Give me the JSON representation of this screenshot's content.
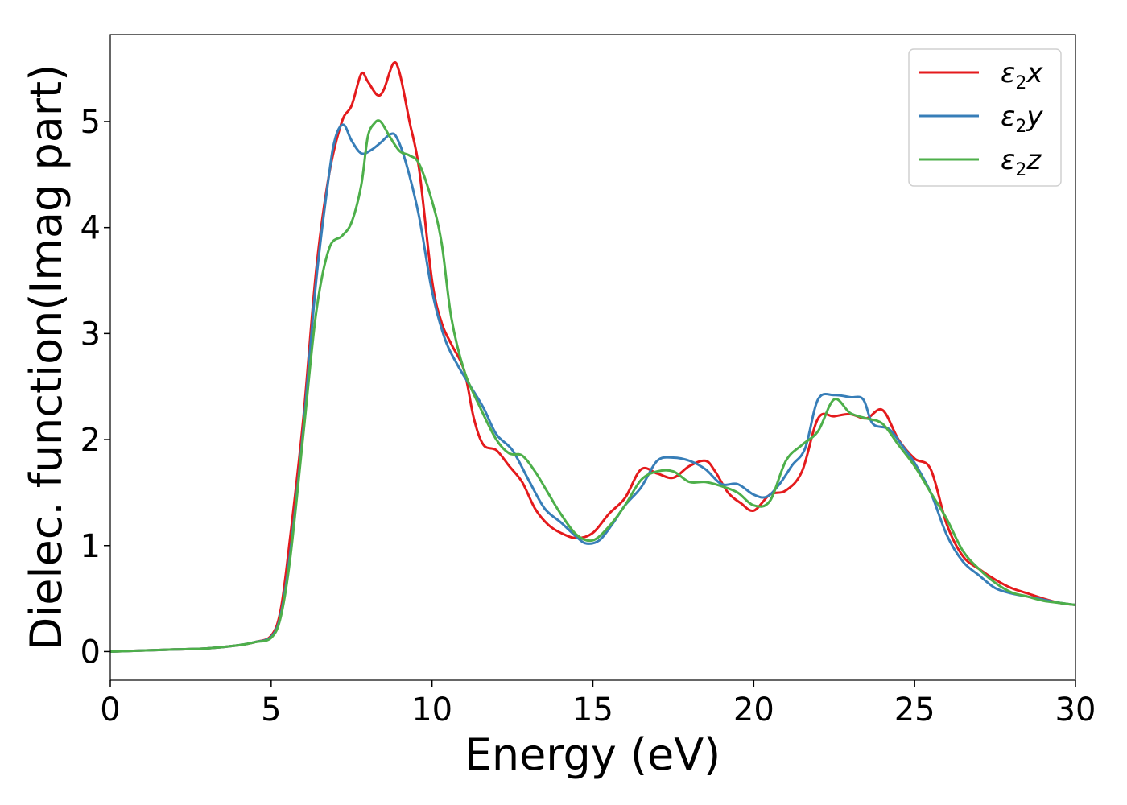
{
  "chart_data": {
    "type": "line",
    "xlabel": "Energy (eV)",
    "ylabel": "Dielec. function(Imag part)",
    "xlim": [
      0,
      30
    ],
    "ylim": [
      -0.27,
      5.82
    ],
    "xticks": [
      0,
      5,
      10,
      15,
      20,
      25,
      30
    ],
    "yticks": [
      0,
      1,
      2,
      3,
      4,
      5
    ],
    "grid": false,
    "legend_position": "top-right",
    "series": [
      {
        "name": "ε2x",
        "legend_base": "ε",
        "legend_sub": "2",
        "legend_suffix": "x",
        "color": "#e41a1c",
        "x": [
          0,
          1,
          2,
          3,
          4,
          4.5,
          5,
          5.3,
          5.6,
          6,
          6.4,
          6.8,
          7.2,
          7.5,
          7.8,
          8.0,
          8.3,
          8.5,
          8.8,
          9.0,
          9.3,
          9.6,
          10,
          10.3,
          10.6,
          11,
          11.3,
          11.6,
          12,
          12.4,
          12.8,
          13.2,
          13.6,
          14,
          14.5,
          15,
          15.5,
          16,
          16.5,
          17,
          17.5,
          18,
          18.5,
          18.8,
          19.2,
          19.6,
          20,
          20.5,
          21,
          21.5,
          22,
          22.5,
          23,
          23.5,
          24,
          24.5,
          25,
          25.5,
          26,
          26.5,
          27,
          27.5,
          28,
          28.5,
          29,
          29.5,
          30
        ],
        "y": [
          0,
          0.01,
          0.02,
          0.03,
          0.06,
          0.09,
          0.15,
          0.4,
          1.1,
          2.2,
          3.6,
          4.5,
          5.0,
          5.15,
          5.45,
          5.38,
          5.25,
          5.3,
          5.55,
          5.45,
          5.0,
          4.55,
          3.5,
          3.1,
          2.9,
          2.65,
          2.2,
          1.95,
          1.9,
          1.75,
          1.6,
          1.35,
          1.2,
          1.12,
          1.07,
          1.12,
          1.3,
          1.45,
          1.72,
          1.68,
          1.64,
          1.75,
          1.8,
          1.7,
          1.5,
          1.4,
          1.33,
          1.48,
          1.52,
          1.7,
          2.2,
          2.22,
          2.24,
          2.2,
          2.28,
          2.0,
          1.82,
          1.72,
          1.2,
          0.9,
          0.78,
          0.68,
          0.6,
          0.55,
          0.5,
          0.46,
          0.44
        ]
      },
      {
        "name": "ε2y",
        "legend_base": "ε",
        "legend_sub": "2",
        "legend_suffix": "y",
        "color": "#377eb8",
        "x": [
          0,
          1,
          2,
          3,
          4,
          4.5,
          5,
          5.3,
          5.6,
          6,
          6.4,
          6.8,
          7.0,
          7.25,
          7.5,
          7.8,
          8.1,
          8.4,
          8.7,
          8.9,
          9.2,
          9.6,
          10,
          10.4,
          10.8,
          11.2,
          11.6,
          12,
          12.5,
          13,
          13.5,
          14,
          14.5,
          14.8,
          15.2,
          15.6,
          16,
          16.5,
          17,
          17.5,
          18,
          18.5,
          19,
          19.5,
          20,
          20.4,
          20.8,
          21.2,
          21.6,
          22,
          22.5,
          23,
          23.4,
          23.7,
          24.2,
          24.6,
          25,
          25.5,
          26,
          26.5,
          27,
          27.5,
          28,
          28.5,
          29,
          29.5,
          30
        ],
        "y": [
          0,
          0.01,
          0.02,
          0.03,
          0.06,
          0.09,
          0.14,
          0.35,
          0.95,
          2.1,
          3.5,
          4.5,
          4.85,
          4.97,
          4.82,
          4.7,
          4.73,
          4.8,
          4.88,
          4.85,
          4.6,
          4.1,
          3.4,
          2.95,
          2.7,
          2.5,
          2.3,
          2.05,
          1.9,
          1.62,
          1.35,
          1.22,
          1.08,
          1.02,
          1.05,
          1.2,
          1.38,
          1.55,
          1.8,
          1.83,
          1.8,
          1.72,
          1.58,
          1.58,
          1.48,
          1.46,
          1.58,
          1.76,
          1.92,
          2.38,
          2.42,
          2.4,
          2.38,
          2.15,
          2.1,
          1.95,
          1.78,
          1.5,
          1.1,
          0.85,
          0.72,
          0.6,
          0.55,
          0.52,
          0.49,
          0.46,
          0.44
        ]
      },
      {
        "name": "ε2z",
        "legend_base": "ε",
        "legend_sub": "2",
        "legend_suffix": "z",
        "color": "#4daf4a",
        "x": [
          0,
          1,
          2,
          3,
          4,
          4.5,
          5,
          5.3,
          5.6,
          6,
          6.4,
          6.8,
          7.2,
          7.5,
          7.8,
          8.0,
          8.2,
          8.4,
          8.7,
          9.0,
          9.3,
          9.6,
          10,
          10.3,
          10.6,
          11,
          11.5,
          12,
          12.4,
          12.8,
          13.2,
          13.6,
          14,
          14.5,
          15,
          15.5,
          16,
          16.5,
          17,
          17.5,
          18,
          18.5,
          19,
          19.5,
          20,
          20.5,
          21,
          21.5,
          22,
          22.5,
          23,
          23.5,
          24,
          24.5,
          25,
          25.5,
          26,
          26.5,
          27,
          27.5,
          28,
          28.5,
          29,
          29.5,
          30
        ],
        "y": [
          0,
          0.01,
          0.02,
          0.03,
          0.06,
          0.09,
          0.13,
          0.33,
          0.9,
          2.05,
          3.2,
          3.8,
          3.92,
          4.05,
          4.4,
          4.85,
          4.98,
          5.0,
          4.85,
          4.72,
          4.68,
          4.6,
          4.25,
          3.85,
          3.15,
          2.65,
          2.3,
          2.0,
          1.87,
          1.85,
          1.7,
          1.5,
          1.3,
          1.1,
          1.05,
          1.18,
          1.38,
          1.62,
          1.7,
          1.7,
          1.6,
          1.6,
          1.56,
          1.5,
          1.38,
          1.42,
          1.8,
          1.95,
          2.08,
          2.38,
          2.25,
          2.2,
          2.15,
          1.95,
          1.75,
          1.5,
          1.25,
          0.95,
          0.78,
          0.65,
          0.56,
          0.52,
          0.48,
          0.46,
          0.44
        ]
      }
    ]
  }
}
